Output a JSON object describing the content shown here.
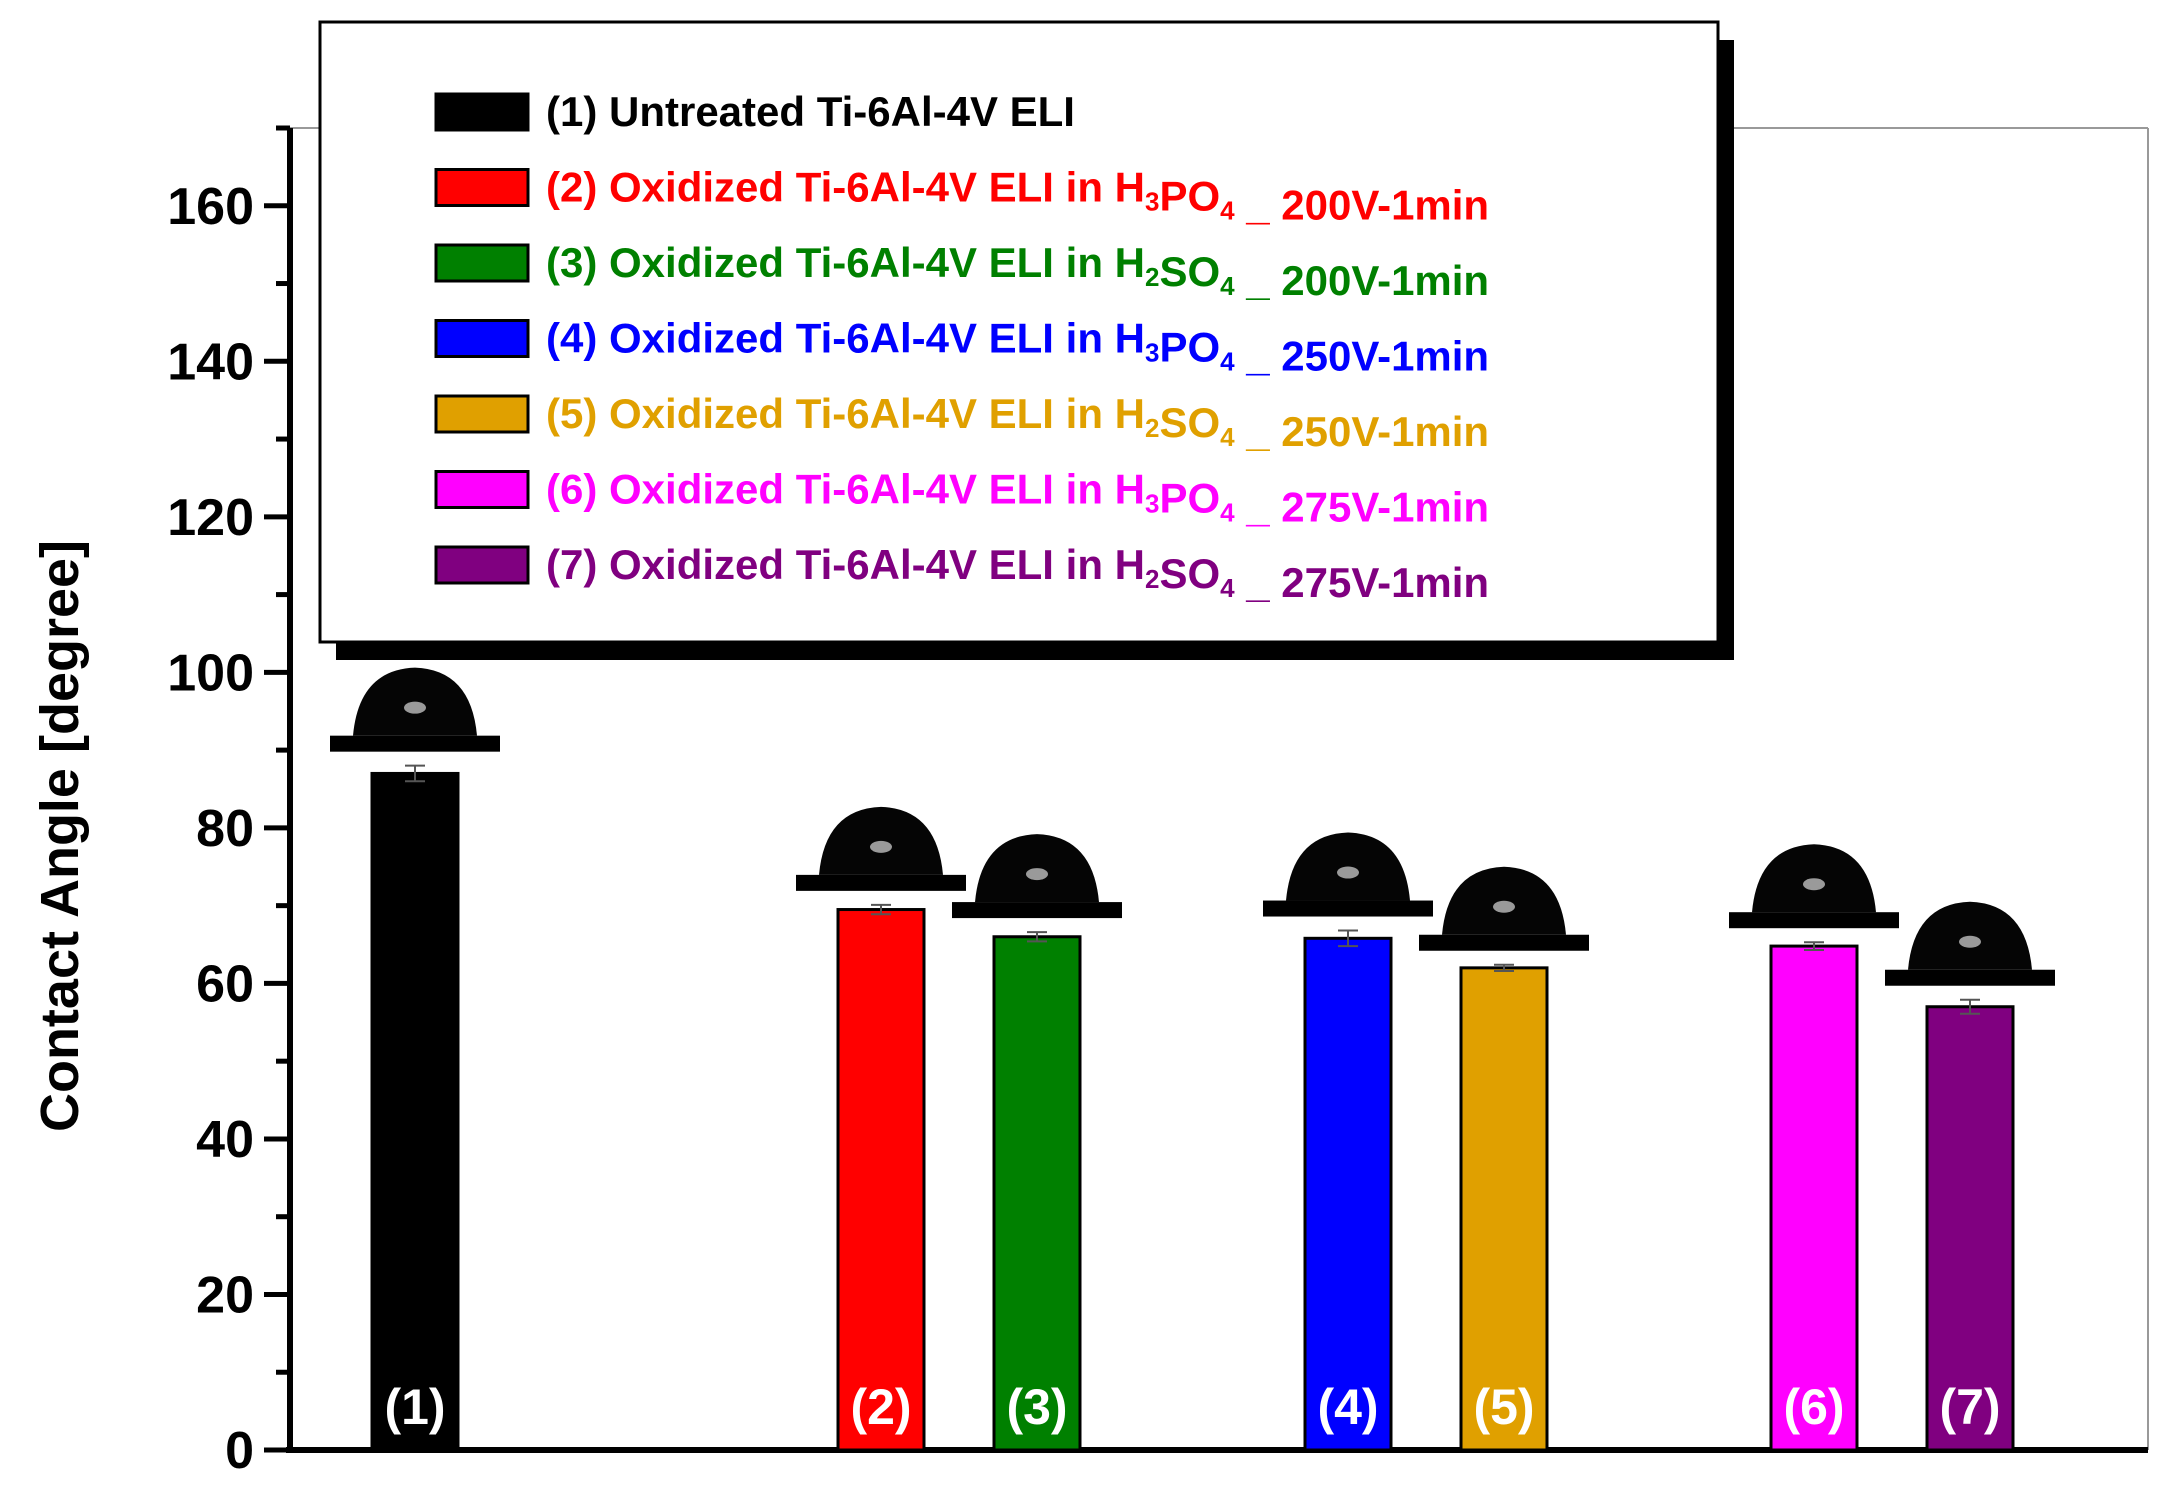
{
  "chart_data": {
    "type": "bar",
    "ylabel": "Contact Angle [degree]",
    "xlabel": "",
    "ylim": [
      0,
      170
    ],
    "yticks": [
      0,
      20,
      40,
      60,
      80,
      100,
      120,
      140,
      160
    ],
    "y_minor_step": 10,
    "legend_position": "top",
    "bars": [
      {
        "label": "(1)",
        "value": 87,
        "error": 1.0,
        "color": "#000000",
        "group": 0
      },
      {
        "label": "(2)",
        "value": 69.5,
        "error": 0.6,
        "color": "#ff0000",
        "group": 1
      },
      {
        "label": "(3)",
        "value": 66,
        "error": 0.6,
        "color": "#008000",
        "group": 1
      },
      {
        "label": "(4)",
        "value": 65.8,
        "error": 1.0,
        "color": "#0000ff",
        "group": 2
      },
      {
        "label": "(5)",
        "value": 62,
        "error": 0.4,
        "color": "#e0a000",
        "group": 2
      },
      {
        "label": "(6)",
        "value": 64.8,
        "error": 0.5,
        "color": "#ff00ff",
        "group": 3
      },
      {
        "label": "(7)",
        "value": 57,
        "error": 0.9,
        "color": "#800080",
        "group": 3
      }
    ],
    "legend": [
      {
        "color": "#000000",
        "text_color": "#000000",
        "parts": [
          {
            "t": "(1) Untreated Ti-6Al-4V ELI"
          }
        ]
      },
      {
        "color": "#ff0000",
        "text_color": "#ff0000",
        "parts": [
          {
            "t": "(2) Oxidized Ti-6Al-4V ELI in H"
          },
          {
            "t": "3",
            "sub": true
          },
          {
            "t": "PO"
          },
          {
            "t": "4",
            "sub": true
          },
          {
            "t": " _ 200V-1min"
          }
        ]
      },
      {
        "color": "#008000",
        "text_color": "#008000",
        "parts": [
          {
            "t": "(3) Oxidized Ti-6Al-4V ELI in H"
          },
          {
            "t": "2",
            "sub": true
          },
          {
            "t": "SO"
          },
          {
            "t": "4",
            "sub": true
          },
          {
            "t": " _ 200V-1min"
          }
        ]
      },
      {
        "color": "#0000ff",
        "text_color": "#0000ff",
        "parts": [
          {
            "t": "(4) Oxidized Ti-6Al-4V ELI in H"
          },
          {
            "t": "3",
            "sub": true
          },
          {
            "t": "PO"
          },
          {
            "t": "4",
            "sub": true
          },
          {
            "t": " _ 250V-1min"
          }
        ]
      },
      {
        "color": "#e0a000",
        "text_color": "#e0a000",
        "parts": [
          {
            "t": "(5) Oxidized Ti-6Al-4V ELI in H"
          },
          {
            "t": "2",
            "sub": true
          },
          {
            "t": "SO"
          },
          {
            "t": "4",
            "sub": true
          },
          {
            "t": " _ 250V-1min"
          }
        ]
      },
      {
        "color": "#ff00ff",
        "text_color": "#ff00ff",
        "parts": [
          {
            "t": "(6) Oxidized Ti-6Al-4V ELI in H"
          },
          {
            "t": "3",
            "sub": true
          },
          {
            "t": "PO"
          },
          {
            "t": "4",
            "sub": true
          },
          {
            "t": " _ 275V-1min"
          }
        ]
      },
      {
        "color": "#800080",
        "text_color": "#800080",
        "parts": [
          {
            "t": "(7) Oxidized Ti-6Al-4V ELI in H"
          },
          {
            "t": "2",
            "sub": true
          },
          {
            "t": "SO"
          },
          {
            "t": "4",
            "sub": true
          },
          {
            "t": " _ 275V-1min"
          }
        ]
      }
    ]
  }
}
